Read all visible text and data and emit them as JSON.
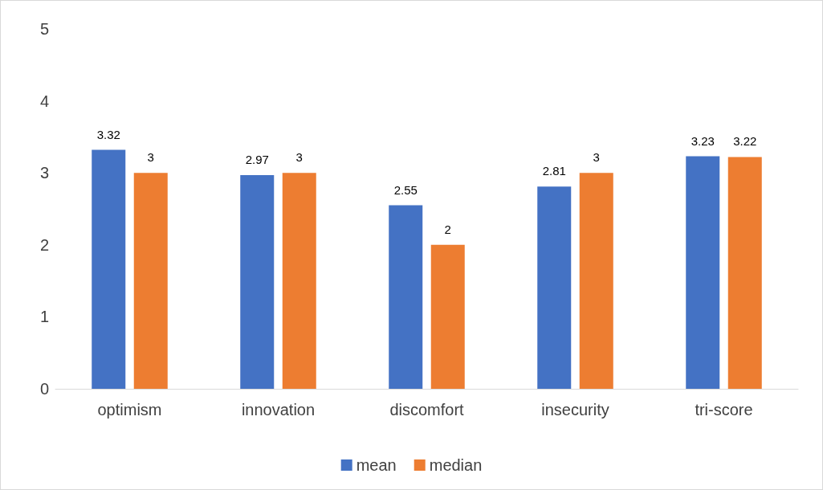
{
  "chart_data": {
    "type": "bar",
    "categories": [
      "optimism",
      "innovation",
      "discomfort",
      "insecurity",
      "tri-score"
    ],
    "series": [
      {
        "name": "mean",
        "color": "#4472c4",
        "values": [
          3.32,
          2.97,
          2.55,
          2.81,
          3.23
        ]
      },
      {
        "name": "median",
        "color": "#ed7d31",
        "values": [
          3,
          3,
          2,
          3,
          3.22
        ]
      }
    ],
    "ylim": [
      0,
      5
    ],
    "yticks": [
      0,
      1,
      2,
      3,
      4,
      5
    ],
    "grid": false,
    "legend": "bottom",
    "data_labels": true
  }
}
